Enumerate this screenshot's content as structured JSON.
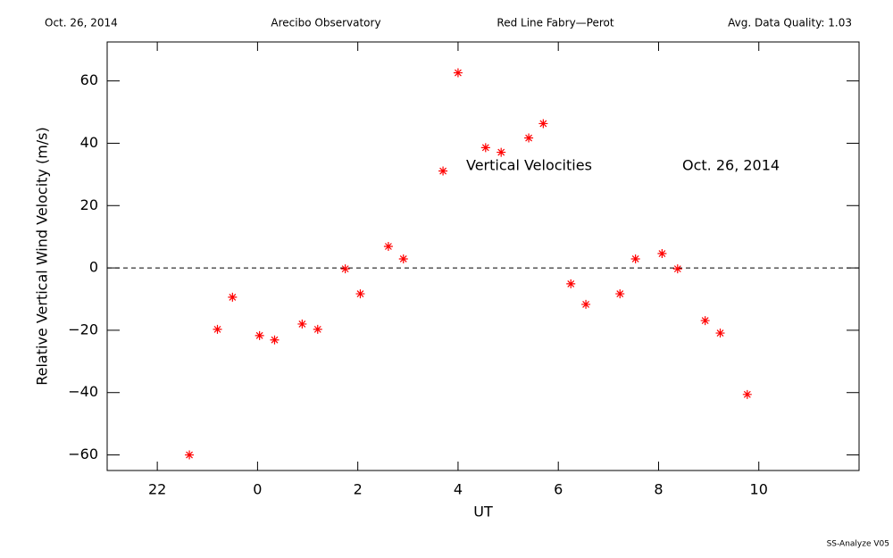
{
  "chart_data": {
    "type": "scatter",
    "header": [
      "Oct. 26, 2014",
      "Arecibo Observatory",
      "Red Line Fabry—Perot",
      "Avg. Data Quality: 1.03"
    ],
    "annotations": [
      "Vertical Velocities",
      "Oct. 26, 2014"
    ],
    "footer": "SS-Analyze V05",
    "xlabel": "UT",
    "ylabel": "Relative Vertical Wind Velocity (m/s)",
    "xlim": [
      -3,
      12
    ],
    "ylim": [
      -65,
      72.5
    ],
    "xticks": [
      {
        "value": -2,
        "label": "22"
      },
      0,
      2,
      4,
      6,
      8,
      10
    ],
    "yticks": [
      {
        "value": -60,
        "label": "−60"
      },
      {
        "value": -40,
        "label": "−40"
      },
      {
        "value": -20,
        "label": "−20"
      },
      0,
      20,
      40,
      60
    ],
    "hline": 0,
    "series": [
      {
        "name": "Vertical Velocities",
        "color": "#ff0000",
        "x": [
          -1.36,
          -0.8,
          -0.5,
          0.04,
          0.34,
          0.89,
          1.2,
          1.75,
          2.05,
          2.61,
          2.91,
          3.7,
          4.0,
          4.55,
          4.86,
          5.41,
          5.7,
          6.25,
          6.55,
          7.23,
          7.54,
          8.07,
          8.38,
          8.93,
          9.23,
          9.77
        ],
        "values": [
          -60,
          -19.7,
          -9.4,
          -21.7,
          -23.1,
          -18,
          -19.7,
          -0.3,
          -8.3,
          6.9,
          2.9,
          31.1,
          62.6,
          38.6,
          37.1,
          41.7,
          46.3,
          -5.1,
          -11.7,
          -8.3,
          2.9,
          4.6,
          -0.3,
          -16.9,
          -20.9,
          -40.6
        ]
      }
    ]
  }
}
